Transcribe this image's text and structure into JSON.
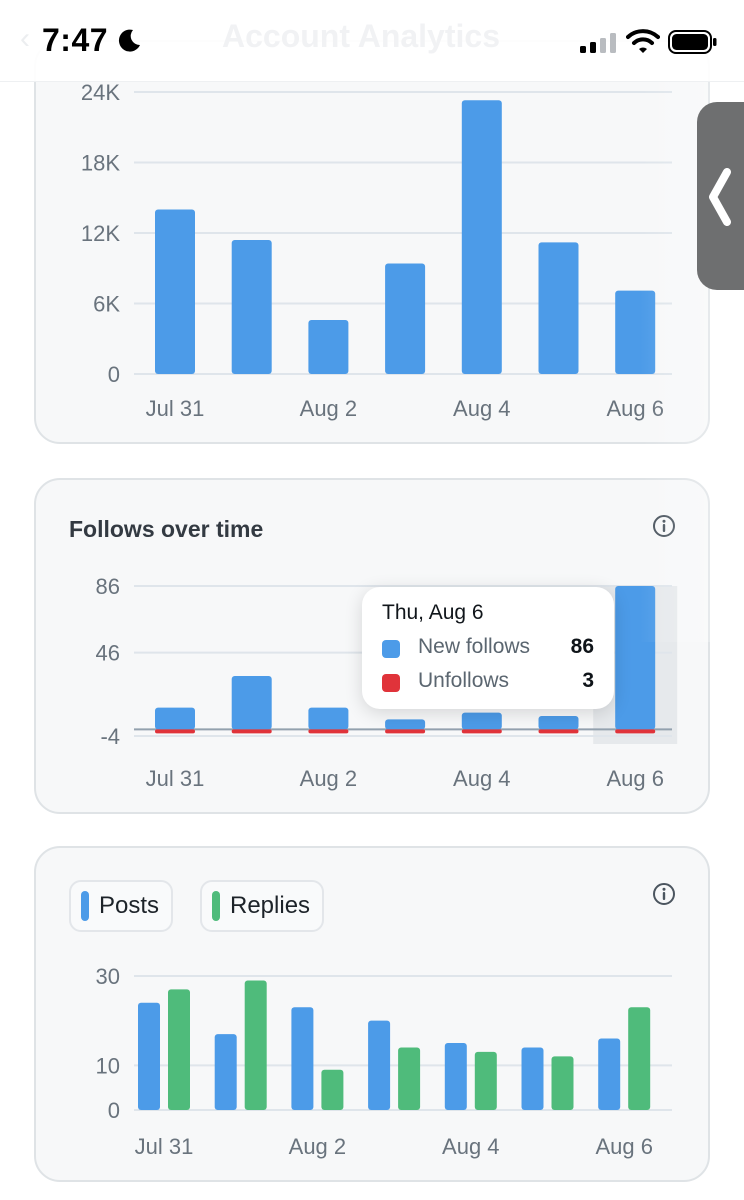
{
  "status_bar": {
    "time": "7:47",
    "behind_title": "Account Analytics",
    "icons": [
      "moon-icon",
      "signal-icon",
      "wifi-icon",
      "battery-icon"
    ]
  },
  "drawer": {
    "icon": "chevron-left-icon"
  },
  "colors": {
    "blue": "#4c9be8",
    "red": "#e0333a",
    "green": "#4fbb7b",
    "grid": "#dfe5eb",
    "tick": "#69737d"
  },
  "chart_data": [
    {
      "type": "bar",
      "title": "",
      "categories": [
        "Jul 31",
        "Aug 1",
        "Aug 2",
        "Aug 3",
        "Aug 4",
        "Aug 5",
        "Aug 6"
      ],
      "x_tick_labels": [
        "Jul 31",
        "Aug 2",
        "Aug 4",
        "Aug 6"
      ],
      "y_tick_labels": [
        "0",
        "6K",
        "12K",
        "18K",
        "24K"
      ],
      "series": [
        {
          "values": [
            14000,
            11400,
            4600,
            9400,
            23300,
            11200,
            7100
          ]
        }
      ],
      "ylim": [
        0,
        24000
      ],
      "grid": true
    },
    {
      "type": "bar",
      "title": "Follows over time",
      "categories": [
        "Jul 31",
        "Aug 1",
        "Aug 2",
        "Aug 3",
        "Aug 4",
        "Aug 5",
        "Aug 6"
      ],
      "x_tick_labels": [
        "Jul 31",
        "Aug 2",
        "Aug 4",
        "Aug 6"
      ],
      "y_tick_labels": [
        "-4",
        "46",
        "86"
      ],
      "series": [
        {
          "name": "New follows",
          "values": [
            13,
            32,
            13,
            6,
            10,
            8,
            86
          ]
        },
        {
          "name": "Unfollows",
          "values": [
            1,
            4,
            1,
            2,
            3,
            2,
            3
          ]
        }
      ],
      "ylim": [
        -4,
        86
      ],
      "grid": true,
      "highlighted_category": "Aug 6",
      "tooltip": {
        "date": "Thu, Aug 6",
        "rows": [
          {
            "label": "New follows",
            "value": "86"
          },
          {
            "label": "Unfollows",
            "value": "3"
          }
        ]
      }
    },
    {
      "type": "bar",
      "title": "",
      "categories": [
        "Jul 31",
        "Aug 1",
        "Aug 2",
        "Aug 3",
        "Aug 4",
        "Aug 5",
        "Aug 6"
      ],
      "x_tick_labels": [
        "Jul 31",
        "Aug 2",
        "Aug 4",
        "Aug 6"
      ],
      "y_tick_labels": [
        "0",
        "10",
        "30"
      ],
      "series": [
        {
          "name": "Posts",
          "values": [
            24,
            17,
            23,
            20,
            15,
            14,
            16
          ]
        },
        {
          "name": "Replies",
          "values": [
            27,
            29,
            9,
            14,
            13,
            12,
            23
          ]
        }
      ],
      "ylim": [
        0,
        30
      ],
      "grid": true,
      "legend": [
        "Posts",
        "Replies"
      ]
    }
  ]
}
